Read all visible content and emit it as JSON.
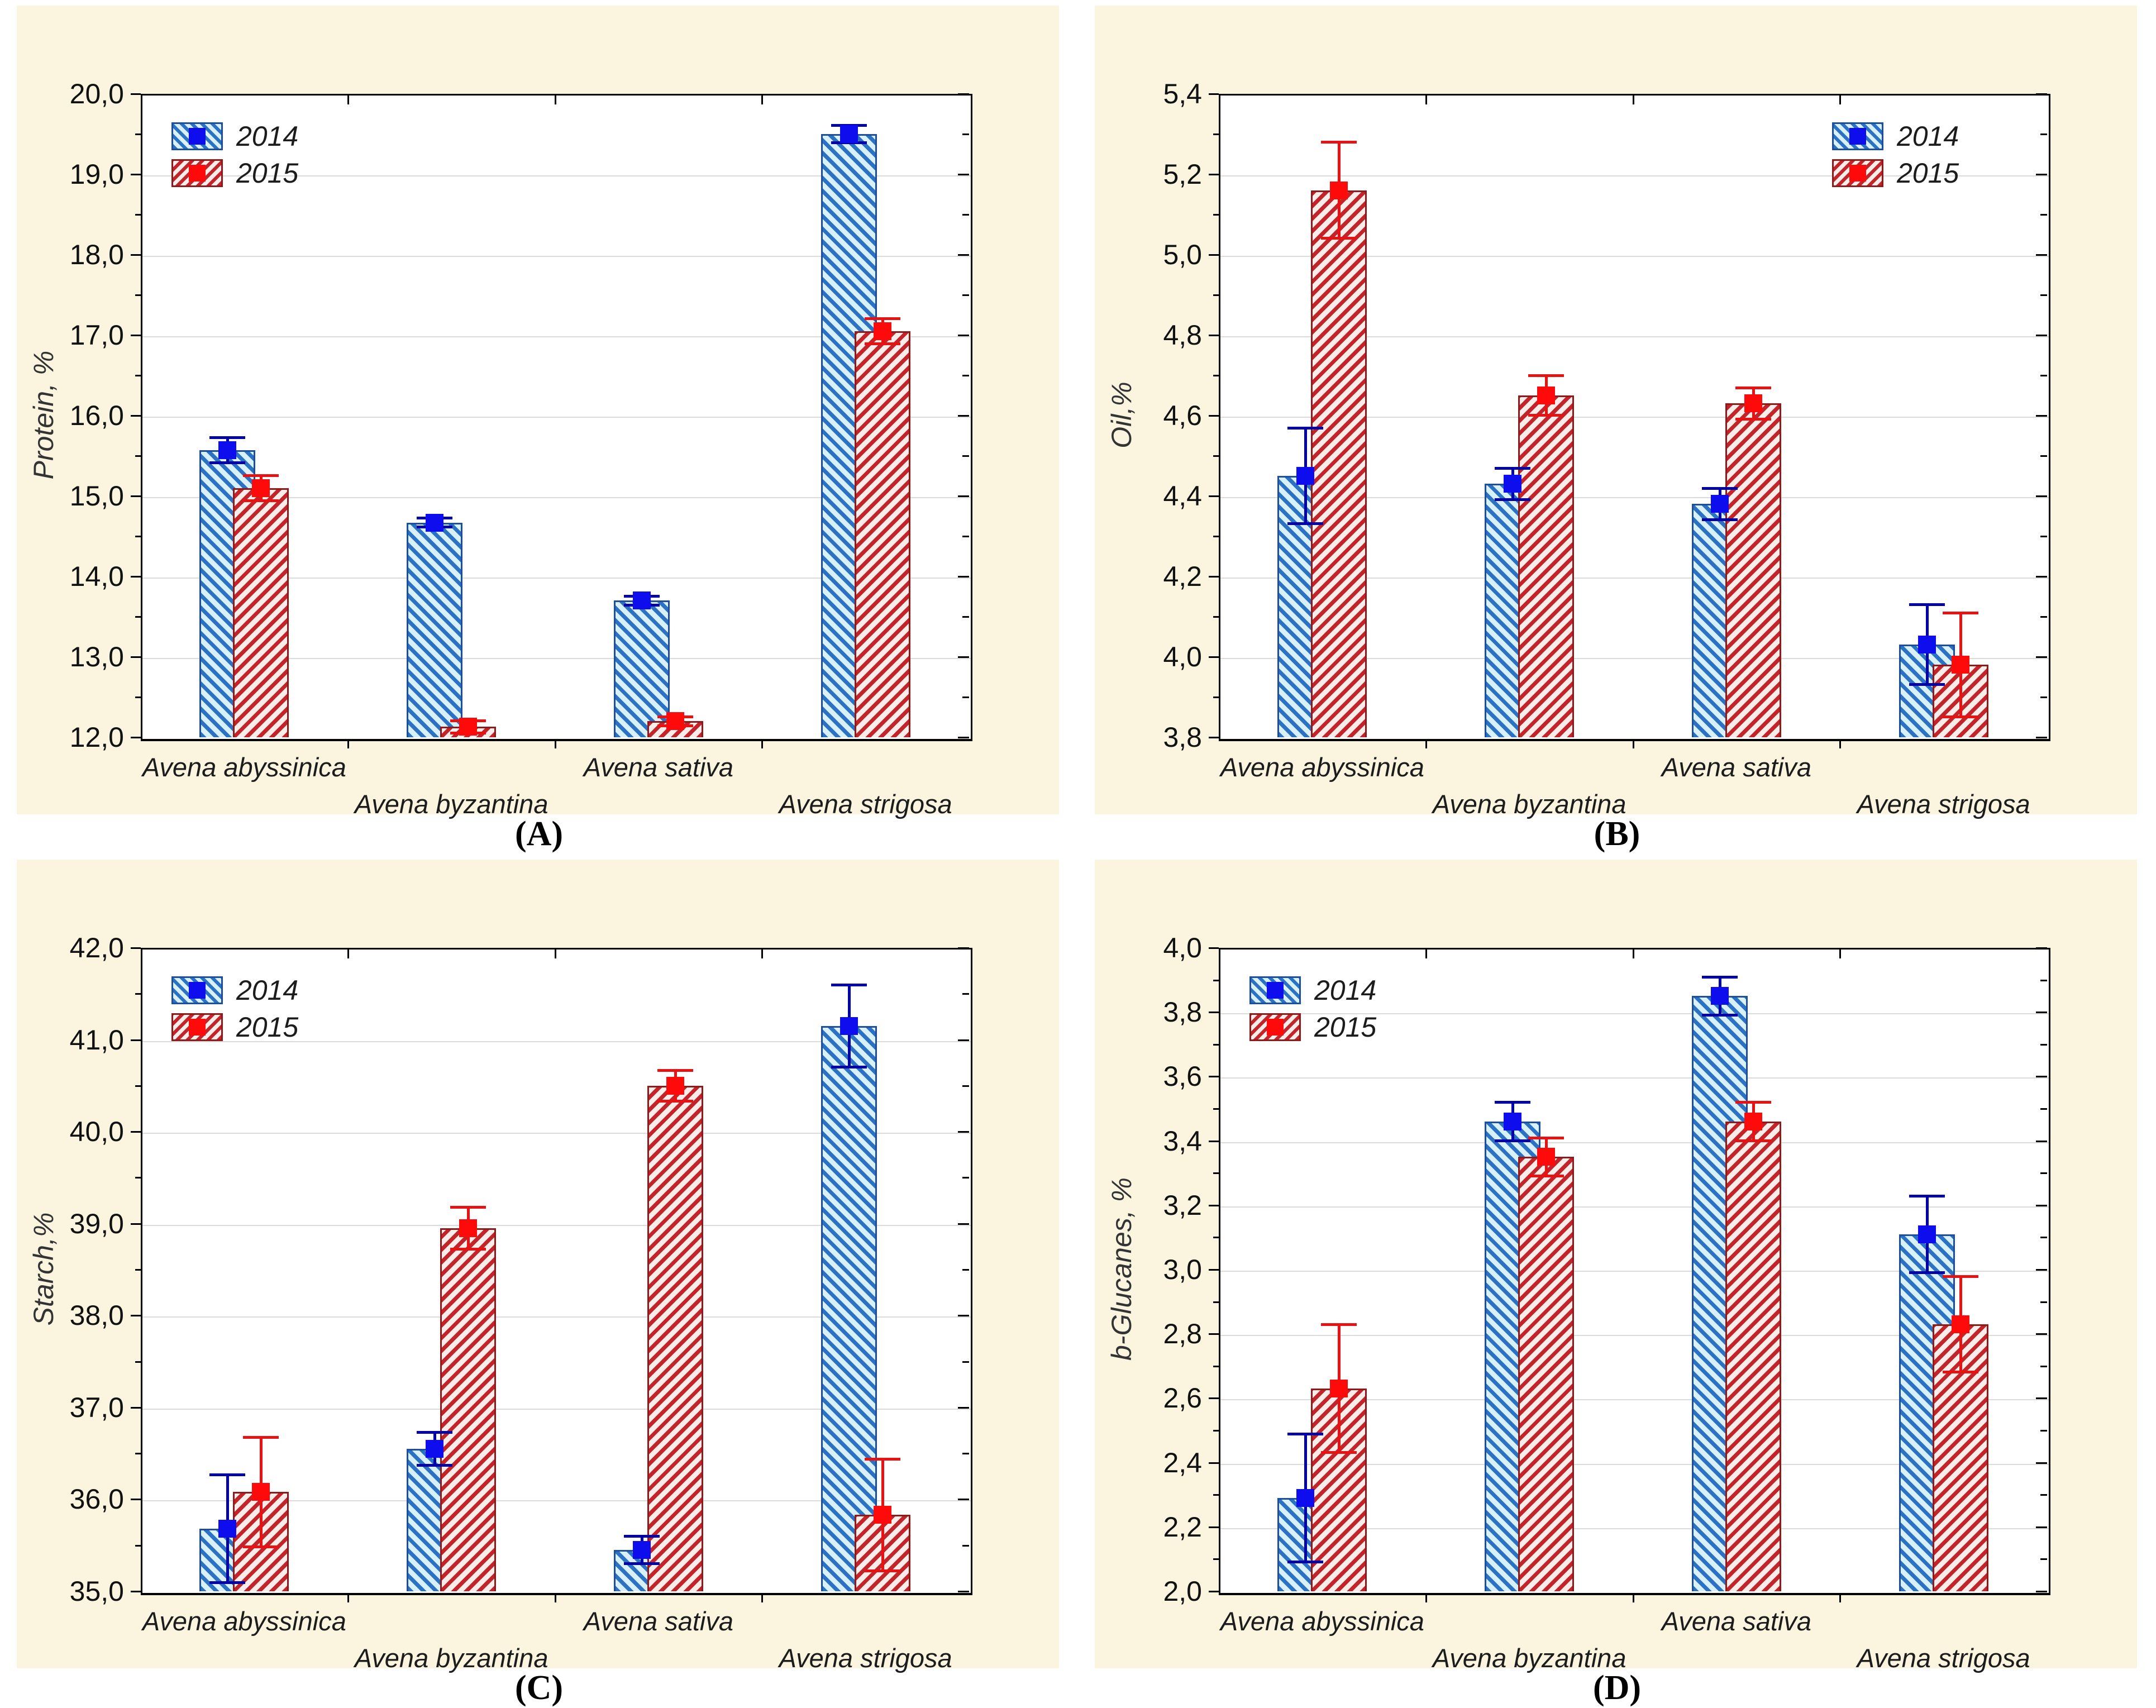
{
  "figure": {
    "background": "#FFFFFF",
    "panel_background": "#FBF5E0",
    "plot_background": "#FFFFFF",
    "gridline_color": "#DBDBDB",
    "series_colors": {
      "2014": "#2B72C4",
      "2015": "#C2242A"
    },
    "marker_colors": {
      "2014": "#0D0DEE",
      "2015": "#FF0A0A"
    }
  },
  "chart_data": [
    {
      "id": "A",
      "type": "bar",
      "caption": "(A)",
      "ylabel": "Protein, %",
      "xlabel": "",
      "ylim": [
        12.0,
        20.0
      ],
      "ytick_step": 1.0,
      "grid": true,
      "legend_position": "top-left",
      "ytick_labels": [
        "20,0",
        "19,0",
        "18,0",
        "17,0",
        "16,0",
        "15,0",
        "14,0",
        "13,0",
        "12,0"
      ],
      "categories": [
        "Avena abyssinica",
        "Avena byzantina",
        "Avena sativa",
        "Avena strigosa"
      ],
      "series": [
        {
          "name": "2014",
          "values": [
            15.57,
            14.67,
            13.7,
            19.5
          ],
          "errors": [
            0.16,
            0.06,
            0.06,
            0.11
          ]
        },
        {
          "name": "2015",
          "values": [
            15.1,
            12.13,
            12.2,
            17.05
          ],
          "errors": [
            0.16,
            0.08,
            0.06,
            0.16
          ]
        }
      ]
    },
    {
      "id": "B",
      "type": "bar",
      "caption": "(B)",
      "ylabel": "Oil,%",
      "xlabel": "",
      "ylim": [
        3.8,
        5.4
      ],
      "ytick_step": 0.2,
      "grid": true,
      "legend_position": "top-right",
      "ytick_labels": [
        "5,4",
        "5,2",
        "5,0",
        "4,8",
        "4,6",
        "4,4",
        "4,2",
        "4,0",
        "3,8"
      ],
      "categories": [
        "Avena abyssinica",
        "Avena byzantina",
        "Avena sativa",
        "Avena strigosa"
      ],
      "series": [
        {
          "name": "2014",
          "values": [
            4.45,
            4.43,
            4.38,
            4.03
          ],
          "errors": [
            0.12,
            0.04,
            0.04,
            0.1
          ]
        },
        {
          "name": "2015",
          "values": [
            5.16,
            4.65,
            4.63,
            3.98
          ],
          "errors": [
            0.12,
            0.05,
            0.04,
            0.13
          ]
        }
      ]
    },
    {
      "id": "C",
      "type": "bar",
      "caption": "(C)",
      "ylabel": "Starch,%",
      "xlabel": "",
      "ylim": [
        35.0,
        42.0
      ],
      "ytick_step": 1.0,
      "grid": true,
      "legend_position": "top-left",
      "ytick_labels": [
        "42,0",
        "41,0",
        "40,0",
        "39,0",
        "38,0",
        "37,0",
        "36,0",
        "35,0"
      ],
      "categories": [
        "Avena abyssinica",
        "Avena byzantina",
        "Avena sativa",
        "Avena strigosa"
      ],
      "series": [
        {
          "name": "2014",
          "values": [
            35.68,
            36.55,
            35.45,
            41.15
          ],
          "errors": [
            0.59,
            0.18,
            0.15,
            0.45
          ]
        },
        {
          "name": "2015",
          "values": [
            36.08,
            38.95,
            40.5,
            35.83
          ],
          "errors": [
            0.6,
            0.23,
            0.17,
            0.61
          ]
        }
      ]
    },
    {
      "id": "D",
      "type": "bar",
      "caption": "(D)",
      "ylabel": "b-Glucanes, %",
      "xlabel": "",
      "ylim": [
        2.0,
        4.0
      ],
      "ytick_step": 0.2,
      "grid": true,
      "legend_position": "top-left",
      "ytick_labels": [
        "4,0",
        "3,8",
        "3,6",
        "3,4",
        "3,2",
        "3,0",
        "2,8",
        "2,6",
        "2,4",
        "2,2",
        "2,0"
      ],
      "categories": [
        "Avena abyssinica",
        "Avena byzantina",
        "Avena sativa",
        "Avena strigosa"
      ],
      "series": [
        {
          "name": "2014",
          "values": [
            2.29,
            3.46,
            3.85,
            3.11
          ],
          "errors": [
            0.2,
            0.06,
            0.06,
            0.12
          ]
        },
        {
          "name": "2015",
          "values": [
            2.63,
            3.35,
            3.46,
            2.83
          ],
          "errors": [
            0.2,
            0.06,
            0.06,
            0.15
          ]
        }
      ]
    }
  ]
}
